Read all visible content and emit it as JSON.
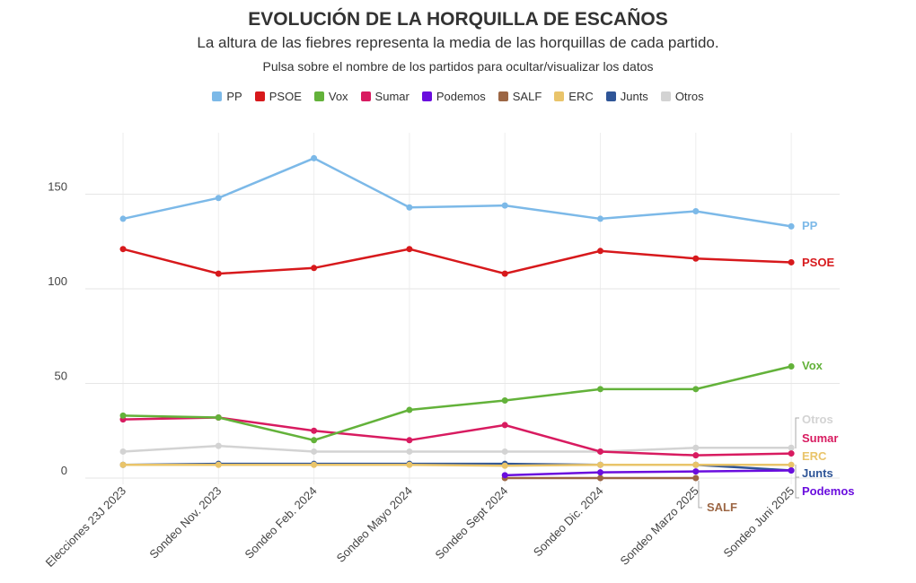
{
  "header": {
    "title": "EVOLUCIÓN DE LA HORQUILLA DE ESCAÑOS",
    "subtitle": "La altura de las fiebres representa la media de las horquillas de cada partido.",
    "hint": "Pulsa sobre el nombre de los partidos para ocultar/visualizar los datos"
  },
  "chart_data": {
    "type": "line",
    "title": "EVOLUCIÓN DE LA HORQUILLA DE ESCAÑOS",
    "categories": [
      "Elecciones 23J 2023",
      "Sondeo Nov. 2023",
      "Sondeo Feb. 2024",
      "Sondeo Mayo 2024",
      "Sondeo Sept 2024",
      "Sondeo Dic. 2024",
      "Sondeo Marzo 2025",
      "Sondeo Juni 2025"
    ],
    "ylim": [
      0,
      180
    ],
    "yticks": [
      0,
      50,
      100,
      150
    ],
    "grid": true,
    "legend": "top",
    "series": [
      {
        "name": "PP",
        "color": "#7cb9e8",
        "values": [
          137,
          148,
          169,
          143,
          144,
          137,
          141,
          133
        ]
      },
      {
        "name": "PSOE",
        "color": "#d7191c",
        "values": [
          121,
          108,
          111,
          121,
          108,
          120,
          116,
          114
        ]
      },
      {
        "name": "Vox",
        "color": "#63b23a",
        "values": [
          33,
          32,
          20,
          36,
          41,
          47,
          47,
          59
        ]
      },
      {
        "name": "Sumar",
        "color": "#d81b60",
        "values": [
          31,
          32,
          25,
          20,
          28,
          14,
          12,
          13
        ]
      },
      {
        "name": "Podemos",
        "color": "#6a0dde",
        "values": [
          null,
          null,
          null,
          null,
          1.5,
          3,
          3.5,
          4
        ]
      },
      {
        "name": "SALF",
        "color": "#9c6644",
        "values": [
          null,
          null,
          null,
          null,
          0,
          0,
          0,
          null
        ]
      },
      {
        "name": "ERC",
        "color": "#e9c46a",
        "values": [
          7,
          7,
          7,
          7,
          6.5,
          7,
          7,
          7
        ]
      },
      {
        "name": "Junts",
        "color": "#2f5597",
        "values": [
          7,
          7.5,
          7.5,
          7.5,
          7.5,
          7,
          7,
          4
        ]
      },
      {
        "name": "Otros",
        "color": "#d3d3d3",
        "values": [
          14,
          17,
          14,
          14,
          14,
          14,
          16,
          16
        ]
      }
    ]
  }
}
